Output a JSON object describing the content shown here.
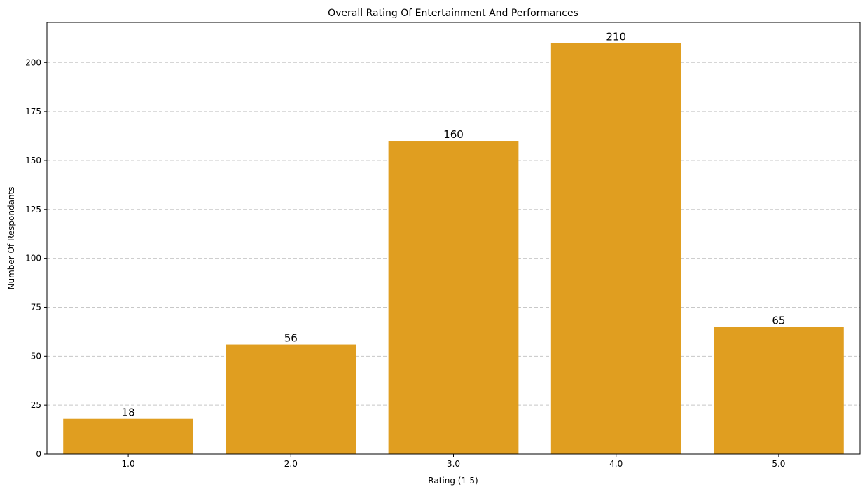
{
  "chart_data": {
    "type": "bar",
    "title": "Overall Rating Of Entertainment And Performances",
    "xlabel": "Rating (1-5)",
    "ylabel": "Number Of Respondants",
    "categories": [
      "1.0",
      "2.0",
      "3.0",
      "4.0",
      "5.0"
    ],
    "values": [
      18,
      56,
      160,
      210,
      65
    ],
    "ylim": [
      0,
      220.5
    ],
    "yticks": [
      0,
      25,
      50,
      75,
      100,
      125,
      150,
      175,
      200
    ],
    "grid": "y-dashed",
    "bar_color": "#e09e20",
    "value_labels": true
  }
}
